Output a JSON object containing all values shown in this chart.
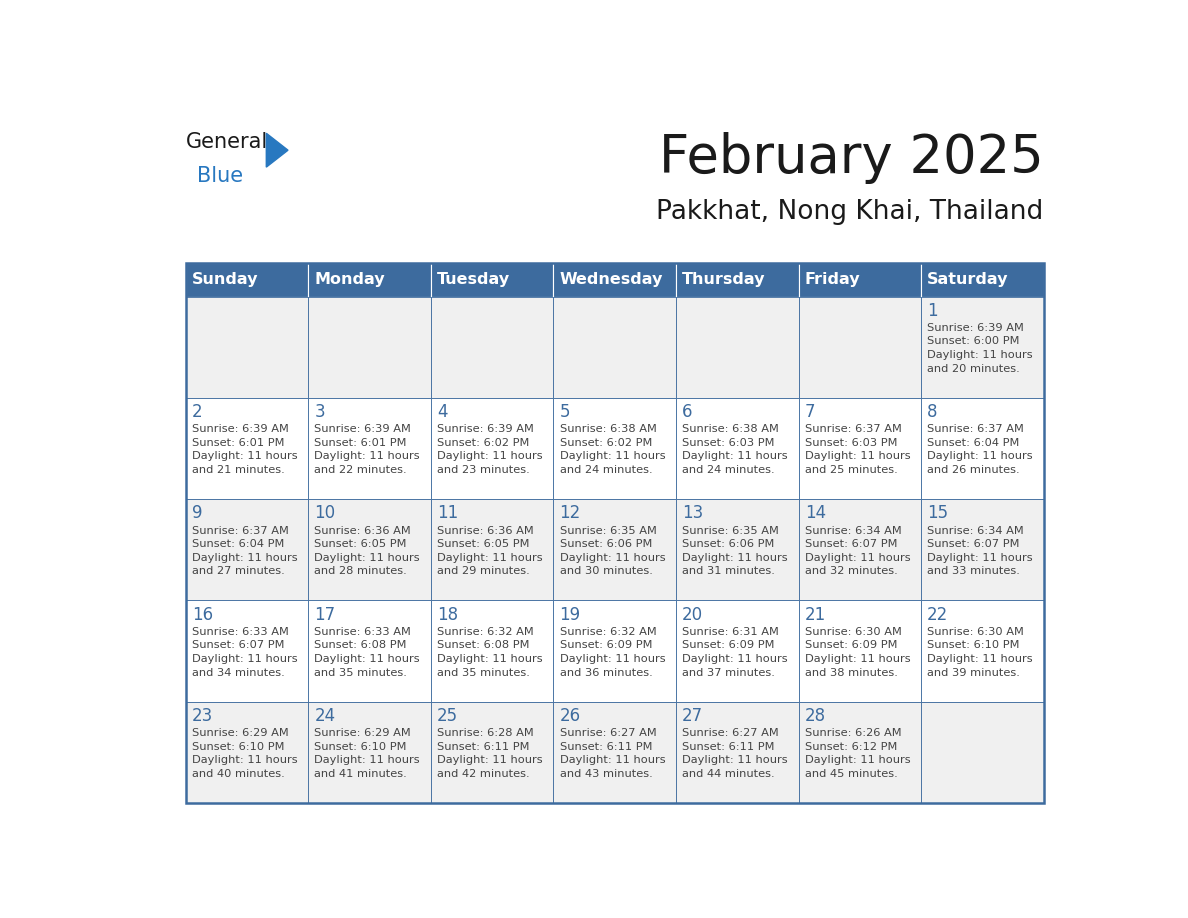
{
  "title": "February 2025",
  "subtitle": "Pakkhat, Nong Khai, Thailand",
  "days_of_week": [
    "Sunday",
    "Monday",
    "Tuesday",
    "Wednesday",
    "Thursday",
    "Friday",
    "Saturday"
  ],
  "header_bg": "#3d6b9e",
  "header_text": "#ffffff",
  "row_bg_even": "#f0f0f0",
  "row_bg_odd": "#ffffff",
  "border_color": "#3d6b9e",
  "day_num_color": "#3d6b9e",
  "text_color": "#444444",
  "title_color": "#1a1a1a",
  "logo_text_color": "#1a1a1a",
  "logo_blue_color": "#2878c0",
  "calendar_data": [
    [
      null,
      null,
      null,
      null,
      null,
      null,
      {
        "day": 1,
        "sunrise": "6:39 AM",
        "sunset": "6:00 PM",
        "daylight": "11 hours\nand 20 minutes."
      }
    ],
    [
      {
        "day": 2,
        "sunrise": "6:39 AM",
        "sunset": "6:01 PM",
        "daylight": "11 hours\nand 21 minutes."
      },
      {
        "day": 3,
        "sunrise": "6:39 AM",
        "sunset": "6:01 PM",
        "daylight": "11 hours\nand 22 minutes."
      },
      {
        "day": 4,
        "sunrise": "6:39 AM",
        "sunset": "6:02 PM",
        "daylight": "11 hours\nand 23 minutes."
      },
      {
        "day": 5,
        "sunrise": "6:38 AM",
        "sunset": "6:02 PM",
        "daylight": "11 hours\nand 24 minutes."
      },
      {
        "day": 6,
        "sunrise": "6:38 AM",
        "sunset": "6:03 PM",
        "daylight": "11 hours\nand 24 minutes."
      },
      {
        "day": 7,
        "sunrise": "6:37 AM",
        "sunset": "6:03 PM",
        "daylight": "11 hours\nand 25 minutes."
      },
      {
        "day": 8,
        "sunrise": "6:37 AM",
        "sunset": "6:04 PM",
        "daylight": "11 hours\nand 26 minutes."
      }
    ],
    [
      {
        "day": 9,
        "sunrise": "6:37 AM",
        "sunset": "6:04 PM",
        "daylight": "11 hours\nand 27 minutes."
      },
      {
        "day": 10,
        "sunrise": "6:36 AM",
        "sunset": "6:05 PM",
        "daylight": "11 hours\nand 28 minutes."
      },
      {
        "day": 11,
        "sunrise": "6:36 AM",
        "sunset": "6:05 PM",
        "daylight": "11 hours\nand 29 minutes."
      },
      {
        "day": 12,
        "sunrise": "6:35 AM",
        "sunset": "6:06 PM",
        "daylight": "11 hours\nand 30 minutes."
      },
      {
        "day": 13,
        "sunrise": "6:35 AM",
        "sunset": "6:06 PM",
        "daylight": "11 hours\nand 31 minutes."
      },
      {
        "day": 14,
        "sunrise": "6:34 AM",
        "sunset": "6:07 PM",
        "daylight": "11 hours\nand 32 minutes."
      },
      {
        "day": 15,
        "sunrise": "6:34 AM",
        "sunset": "6:07 PM",
        "daylight": "11 hours\nand 33 minutes."
      }
    ],
    [
      {
        "day": 16,
        "sunrise": "6:33 AM",
        "sunset": "6:07 PM",
        "daylight": "11 hours\nand 34 minutes."
      },
      {
        "day": 17,
        "sunrise": "6:33 AM",
        "sunset": "6:08 PM",
        "daylight": "11 hours\nand 35 minutes."
      },
      {
        "day": 18,
        "sunrise": "6:32 AM",
        "sunset": "6:08 PM",
        "daylight": "11 hours\nand 35 minutes."
      },
      {
        "day": 19,
        "sunrise": "6:32 AM",
        "sunset": "6:09 PM",
        "daylight": "11 hours\nand 36 minutes."
      },
      {
        "day": 20,
        "sunrise": "6:31 AM",
        "sunset": "6:09 PM",
        "daylight": "11 hours\nand 37 minutes."
      },
      {
        "day": 21,
        "sunrise": "6:30 AM",
        "sunset": "6:09 PM",
        "daylight": "11 hours\nand 38 minutes."
      },
      {
        "day": 22,
        "sunrise": "6:30 AM",
        "sunset": "6:10 PM",
        "daylight": "11 hours\nand 39 minutes."
      }
    ],
    [
      {
        "day": 23,
        "sunrise": "6:29 AM",
        "sunset": "6:10 PM",
        "daylight": "11 hours\nand 40 minutes."
      },
      {
        "day": 24,
        "sunrise": "6:29 AM",
        "sunset": "6:10 PM",
        "daylight": "11 hours\nand 41 minutes."
      },
      {
        "day": 25,
        "sunrise": "6:28 AM",
        "sunset": "6:11 PM",
        "daylight": "11 hours\nand 42 minutes."
      },
      {
        "day": 26,
        "sunrise": "6:27 AM",
        "sunset": "6:11 PM",
        "daylight": "11 hours\nand 43 minutes."
      },
      {
        "day": 27,
        "sunrise": "6:27 AM",
        "sunset": "6:11 PM",
        "daylight": "11 hours\nand 44 minutes."
      },
      {
        "day": 28,
        "sunrise": "6:26 AM",
        "sunset": "6:12 PM",
        "daylight": "11 hours\nand 45 minutes."
      },
      null
    ]
  ]
}
